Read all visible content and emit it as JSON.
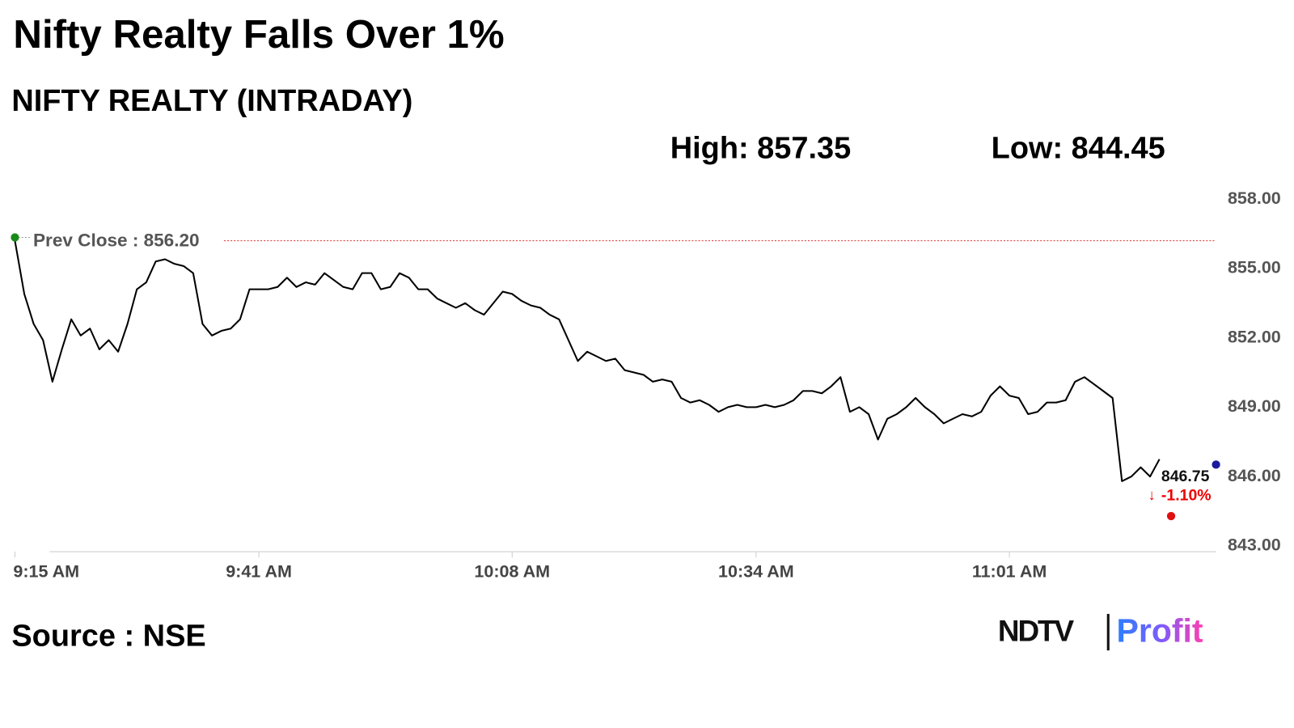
{
  "chart_data": {
    "type": "line",
    "title": "Nifty Realty Falls Over 1%",
    "subtitle": "NIFTY REALTY (INTRADAY)",
    "high_label": "High: 857.35",
    "low_label": "Low: 844.45",
    "source": "Source : NSE",
    "logo": [
      "NDTV",
      "Profit"
    ],
    "prev_close": 856.2,
    "prev_close_label": "Prev Close : 856.20",
    "last_price": "846.75",
    "last_change": "-1.10%",
    "color": "#000000",
    "categories": [
      "9:15 AM",
      null,
      null,
      null,
      null,
      null,
      null,
      null,
      null,
      null,
      null,
      null,
      null,
      null,
      null,
      null,
      null,
      null,
      null,
      null,
      null,
      null,
      null,
      null,
      null,
      null,
      "9:41 AM",
      null,
      null,
      null,
      null,
      null,
      null,
      null,
      null,
      null,
      null,
      null,
      null,
      null,
      null,
      null,
      null,
      null,
      null,
      null,
      null,
      null,
      null,
      null,
      null,
      null,
      null,
      "10:08 AM",
      null,
      null,
      null,
      null,
      null,
      null,
      null,
      null,
      null,
      null,
      null,
      null,
      null,
      null,
      null,
      null,
      null,
      null,
      null,
      null,
      null,
      null,
      null,
      null,
      null,
      "10:34 AM",
      null,
      null,
      null,
      null,
      null,
      null,
      null,
      null,
      null,
      null,
      null,
      null,
      null,
      null,
      null,
      null,
      null,
      null,
      null,
      null,
      null,
      null,
      null,
      null,
      null,
      null,
      "11:01 AM",
      null,
      null,
      null,
      null,
      null,
      null,
      null,
      null,
      null,
      null,
      null,
      null,
      null,
      null,
      null,
      null
    ],
    "values": [
      856.2,
      853.9,
      852.6,
      851.9,
      850.1,
      851.5,
      852.8,
      852.1,
      852.4,
      851.5,
      851.9,
      851.4,
      852.6,
      854.1,
      854.4,
      855.3,
      855.4,
      855.2,
      855.1,
      854.8,
      852.6,
      852.1,
      852.3,
      852.4,
      852.8,
      854.1,
      854.1,
      854.1,
      854.2,
      854.6,
      854.2,
      854.4,
      854.3,
      854.8,
      854.5,
      854.2,
      854.1,
      854.8,
      854.8,
      854.1,
      854.2,
      854.8,
      854.6,
      854.1,
      854.1,
      853.7,
      853.5,
      853.3,
      853.5,
      853.2,
      853.0,
      853.5,
      854.0,
      853.9,
      853.6,
      853.4,
      853.3,
      853.0,
      852.8,
      851.9,
      851.0,
      851.4,
      851.2,
      851.0,
      851.1,
      850.6,
      850.5,
      850.4,
      850.1,
      850.2,
      850.1,
      849.4,
      849.2,
      849.3,
      849.1,
      848.8,
      849.0,
      849.1,
      849.0,
      849.0,
      849.1,
      849.0,
      849.1,
      849.3,
      849.7,
      849.7,
      849.6,
      849.9,
      850.3,
      848.8,
      849.0,
      848.7,
      847.6,
      848.5,
      848.7,
      849.0,
      849.4,
      849.0,
      848.7,
      848.3,
      848.5,
      848.7,
      848.6,
      848.8,
      849.5,
      849.9,
      849.5,
      849.4,
      848.7,
      848.8,
      849.2,
      849.2,
      849.3,
      850.1,
      850.3,
      850.0,
      849.7,
      849.4,
      845.8,
      846.0,
      846.4,
      846.0,
      846.75
    ],
    "ylim": [
      843,
      858
    ],
    "yticks": [
      {
        "value": 843,
        "label": "843.00"
      },
      {
        "value": 846,
        "label": "846.00"
      },
      {
        "value": 849,
        "label": "849.00"
      },
      {
        "value": 852,
        "label": "852.00"
      },
      {
        "value": 855,
        "label": "855.00"
      },
      {
        "value": 858,
        "label": "858.00"
      }
    ]
  }
}
